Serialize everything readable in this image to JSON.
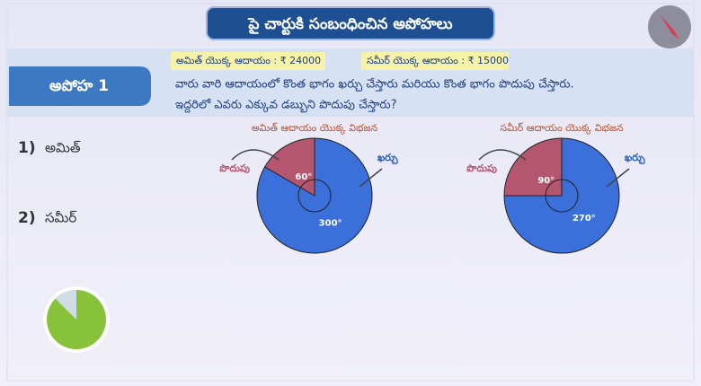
{
  "header": {
    "title": "పై చార్టుకి సంబంధించిన అపోహలు"
  },
  "hypothesis": {
    "label": "అపోహ 1",
    "incomes": [
      "అమిత్ యొక్క ఆదాయం : ₹ 24000",
      "సమీర్ యొక్క ఆదాయం : ₹ 15000"
    ],
    "question": [
      "వారు వారి ఆదాయంలో కొంత భాగం ఖర్చు చేస్తారు మరియు కొంత భాగం పొదుపు చేస్తారు.",
      "ఇద్దరిలో ఎవరు ఎక్కువ డబ్బుని పొదుపు చేస్తారు?"
    ]
  },
  "options": [
    {
      "number": "1)",
      "text": "అమిత్"
    },
    {
      "number": "2)",
      "text": "సమీర్"
    }
  ],
  "chart_data": [
    {
      "type": "pie",
      "title": "అమిత్ ఆదాయం యొక్క విభజన",
      "categories": [
        "పొదుపు",
        "ఖర్చు"
      ],
      "values": [
        60,
        300
      ],
      "value_labels": [
        "60°",
        "300°"
      ],
      "colors": [
        "#b4566f",
        "#3b6fd9"
      ]
    },
    {
      "type": "pie",
      "title": "సమీర్ ఆదాయం యొక్క విభజన",
      "categories": [
        "పొదుపు",
        "ఖర్చు"
      ],
      "values": [
        90,
        270
      ],
      "value_labels": [
        "90°",
        "270°"
      ],
      "colors": [
        "#b4566f",
        "#3b6fd9"
      ]
    }
  ]
}
